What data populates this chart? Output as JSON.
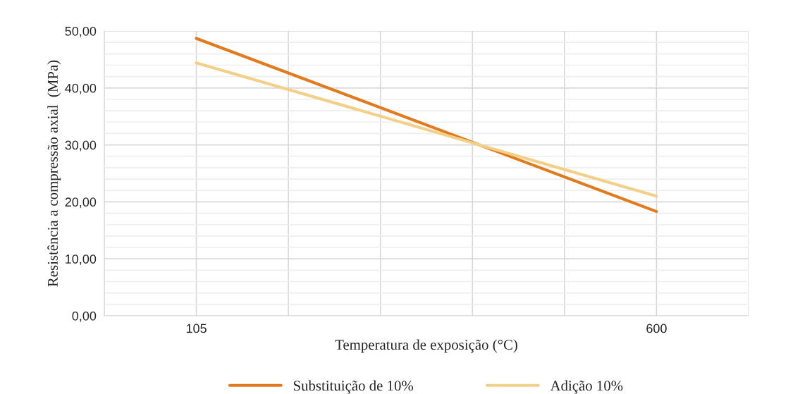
{
  "chart_data": {
    "type": "line",
    "xlabel": "Temperatura de exposição (°C)",
    "ylabel": "Resistência a compressão axial  (MPa)",
    "x": [
      105,
      600
    ],
    "series": [
      {
        "name": "Substituição de 10%",
        "color": "#e07b1f",
        "values": [
          48.7,
          18.3
        ]
      },
      {
        "name": "Adição 10%",
        "color": "#f3d08a",
        "values": [
          44.4,
          21.0
        ]
      }
    ],
    "xlim": [
      6,
      699
    ],
    "xticks": [
      {
        "value": 105,
        "label": "105"
      },
      {
        "value": 204,
        "label": null
      },
      {
        "value": 303,
        "label": null
      },
      {
        "value": 402,
        "label": null
      },
      {
        "value": 501,
        "label": null
      },
      {
        "value": 600,
        "label": "600"
      }
    ],
    "ylim": [
      0,
      50
    ],
    "yticks": [
      {
        "value": 0,
        "label": "0,00"
      },
      {
        "value": 2,
        "label": null
      },
      {
        "value": 4,
        "label": null
      },
      {
        "value": 6,
        "label": null
      },
      {
        "value": 8,
        "label": null
      },
      {
        "value": 10,
        "label": "10,00"
      },
      {
        "value": 12,
        "label": null
      },
      {
        "value": 14,
        "label": null
      },
      {
        "value": 16,
        "label": null
      },
      {
        "value": 18,
        "label": null
      },
      {
        "value": 20,
        "label": "20,00"
      },
      {
        "value": 22,
        "label": null
      },
      {
        "value": 24,
        "label": null
      },
      {
        "value": 26,
        "label": null
      },
      {
        "value": 28,
        "label": null
      },
      {
        "value": 30,
        "label": "30,00"
      },
      {
        "value": 32,
        "label": null
      },
      {
        "value": 34,
        "label": null
      },
      {
        "value": 36,
        "label": null
      },
      {
        "value": 38,
        "label": null
      },
      {
        "value": 40,
        "label": "40,00"
      },
      {
        "value": 42,
        "label": null
      },
      {
        "value": 44,
        "label": null
      },
      {
        "value": 46,
        "label": null
      },
      {
        "value": 48,
        "label": null
      },
      {
        "value": 50,
        "label": "50,00"
      }
    ],
    "grid": true,
    "legend": "bottom",
    "marker": "none",
    "line_style": "solid"
  }
}
